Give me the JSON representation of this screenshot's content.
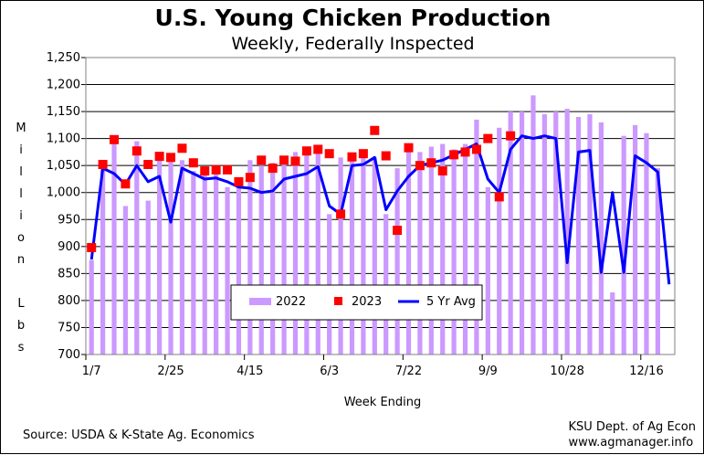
{
  "chart_data": {
    "type": "bar",
    "title": "U.S. Young Chicken Production",
    "subtitle": "Weekly, Federally Inspected",
    "ylabel": "Million Lbs",
    "xlabel": "Week Ending",
    "ylim": [
      700,
      1250
    ],
    "yticks": [
      700,
      750,
      800,
      850,
      900,
      950,
      1000,
      1050,
      1100,
      1150,
      1200,
      1250
    ],
    "ytick_labels": [
      "700",
      "750",
      "800",
      "850",
      "900",
      "950",
      "1,000",
      "1,050",
      "1,100",
      "1,150",
      "1,200",
      "1,250"
    ],
    "x_tick_labels": [
      {
        "week": 1,
        "label": "1/7"
      },
      {
        "week": 8,
        "label": "2/25"
      },
      {
        "week": 15,
        "label": "4/15"
      },
      {
        "week": 22,
        "label": "6/3"
      },
      {
        "week": 29,
        "label": "7/22"
      },
      {
        "week": 36,
        "label": "9/9"
      },
      {
        "week": 43,
        "label": "10/28"
      },
      {
        "week": 50,
        "label": "12/16"
      }
    ],
    "grid": "horizontal",
    "legend": "bottom-center",
    "series": [
      {
        "name": "2022",
        "kind": "bar",
        "color": "#cc99ff",
        "values": [
          875,
          1045,
          1090,
          975,
          1095,
          985,
          1065,
          1070,
          1060,
          1040,
          1045,
          1045,
          1010,
          1025,
          1060,
          1050,
          1055,
          1055,
          1075,
          1080,
          1075,
          960,
          1065,
          1070,
          1070,
          1065,
          960,
          1045,
          1085,
          1075,
          1085,
          1090,
          1080,
          1090,
          1135,
          1010,
          1120,
          1150,
          1150,
          1180,
          1145,
          1150,
          1155,
          1140,
          1145,
          1130,
          815,
          1105,
          1125,
          1110,
          1045
        ]
      },
      {
        "name": "2023",
        "kind": "marker",
        "color": "#ff0000",
        "values": [
          898,
          1052,
          1098,
          1016,
          1077,
          1052,
          1067,
          1065,
          1082,
          1055,
          1040,
          1042,
          1042,
          1020,
          1028,
          1060,
          1045,
          1060,
          1058,
          1077,
          1080,
          1072,
          960,
          1066,
          1072,
          1115,
          1068,
          930,
          1083,
          1050,
          1055,
          1040,
          1070,
          1075,
          1080,
          1100,
          992,
          1105
        ]
      },
      {
        "name": "5 Yr Avg",
        "kind": "line",
        "color": "#0000ff",
        "values": [
          876,
          1045,
          1035,
          1015,
          1050,
          1020,
          1030,
          945,
          1045,
          1035,
          1025,
          1027,
          1020,
          1010,
          1008,
          1000,
          1003,
          1025,
          1030,
          1035,
          1048,
          975,
          960,
          1050,
          1052,
          1065,
          968,
          1003,
          1030,
          1050,
          1055,
          1060,
          1070,
          1080,
          1090,
          1025,
          1000,
          1080,
          1105,
          1100,
          1105,
          1100,
          870,
          1075,
          1078,
          852,
          1000,
          852,
          1068,
          1055,
          1038,
          830
        ]
      }
    ]
  },
  "footer": {
    "source": "Source:  USDA & K-State Ag. Economics",
    "credit_line1": "KSU Dept. of Ag Econ",
    "credit_line2": "www.agmanager.info"
  }
}
